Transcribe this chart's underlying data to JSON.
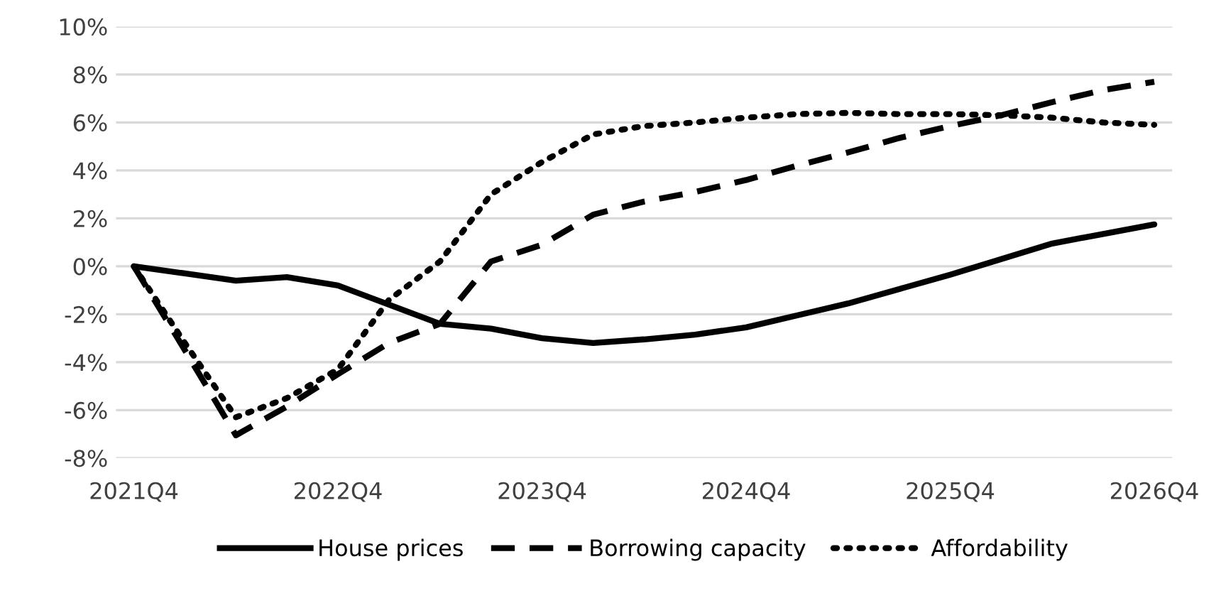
{
  "chart_data": {
    "type": "line",
    "categories": [
      "2021Q4",
      null,
      null,
      null,
      "2022Q4",
      null,
      null,
      null,
      "2023Q4",
      null,
      null,
      null,
      "2024Q4",
      null,
      null,
      null,
      "2025Q4",
      null,
      null,
      null,
      "2026Q4"
    ],
    "series": [
      {
        "name": "House prices",
        "color": "#000000",
        "line_style": "solid",
        "values": [
          0,
          -0.3,
          -0.6,
          -0.45,
          -0.8,
          -1.6,
          -2.4,
          -2.6,
          -3.0,
          -3.2,
          -3.05,
          -2.85,
          -2.55,
          -2.05,
          -1.55,
          -0.95,
          -0.35,
          0.3,
          0.95,
          1.35,
          1.75
        ]
      },
      {
        "name": "Borrowing capacity",
        "color": "#000000",
        "line_style": "dashed",
        "values": [
          0,
          -3.5,
          -7.05,
          -5.85,
          -4.5,
          -3.2,
          -2.4,
          0.2,
          0.9,
          2.15,
          2.7,
          3.1,
          3.6,
          4.2,
          4.75,
          5.35,
          5.85,
          6.3,
          6.85,
          7.35,
          7.7
        ]
      },
      {
        "name": "Affordability",
        "color": "#000000",
        "line_style": "dotted",
        "values": [
          0,
          -3.2,
          -6.3,
          -5.5,
          -4.3,
          -1.4,
          0.2,
          3.0,
          4.35,
          5.5,
          5.85,
          6.0,
          6.2,
          6.35,
          6.4,
          6.35,
          6.35,
          6.3,
          6.2,
          6.0,
          5.9
        ]
      }
    ],
    "ylim": [
      -8,
      10
    ],
    "yticks": [
      {
        "value": -8,
        "label": "-8%"
      },
      {
        "value": -6,
        "label": "-6%"
      },
      {
        "value": -4,
        "label": "-4%"
      },
      {
        "value": -2,
        "label": "-2%"
      },
      {
        "value": 0,
        "label": "0%"
      },
      {
        "value": 2,
        "label": "2%"
      },
      {
        "value": 4,
        "label": "4%"
      },
      {
        "value": 6,
        "label": "6%"
      },
      {
        "value": 8,
        "label": "8%"
      },
      {
        "value": 10,
        "label": "10%"
      }
    ],
    "grid": "y",
    "legend": "bottom"
  }
}
